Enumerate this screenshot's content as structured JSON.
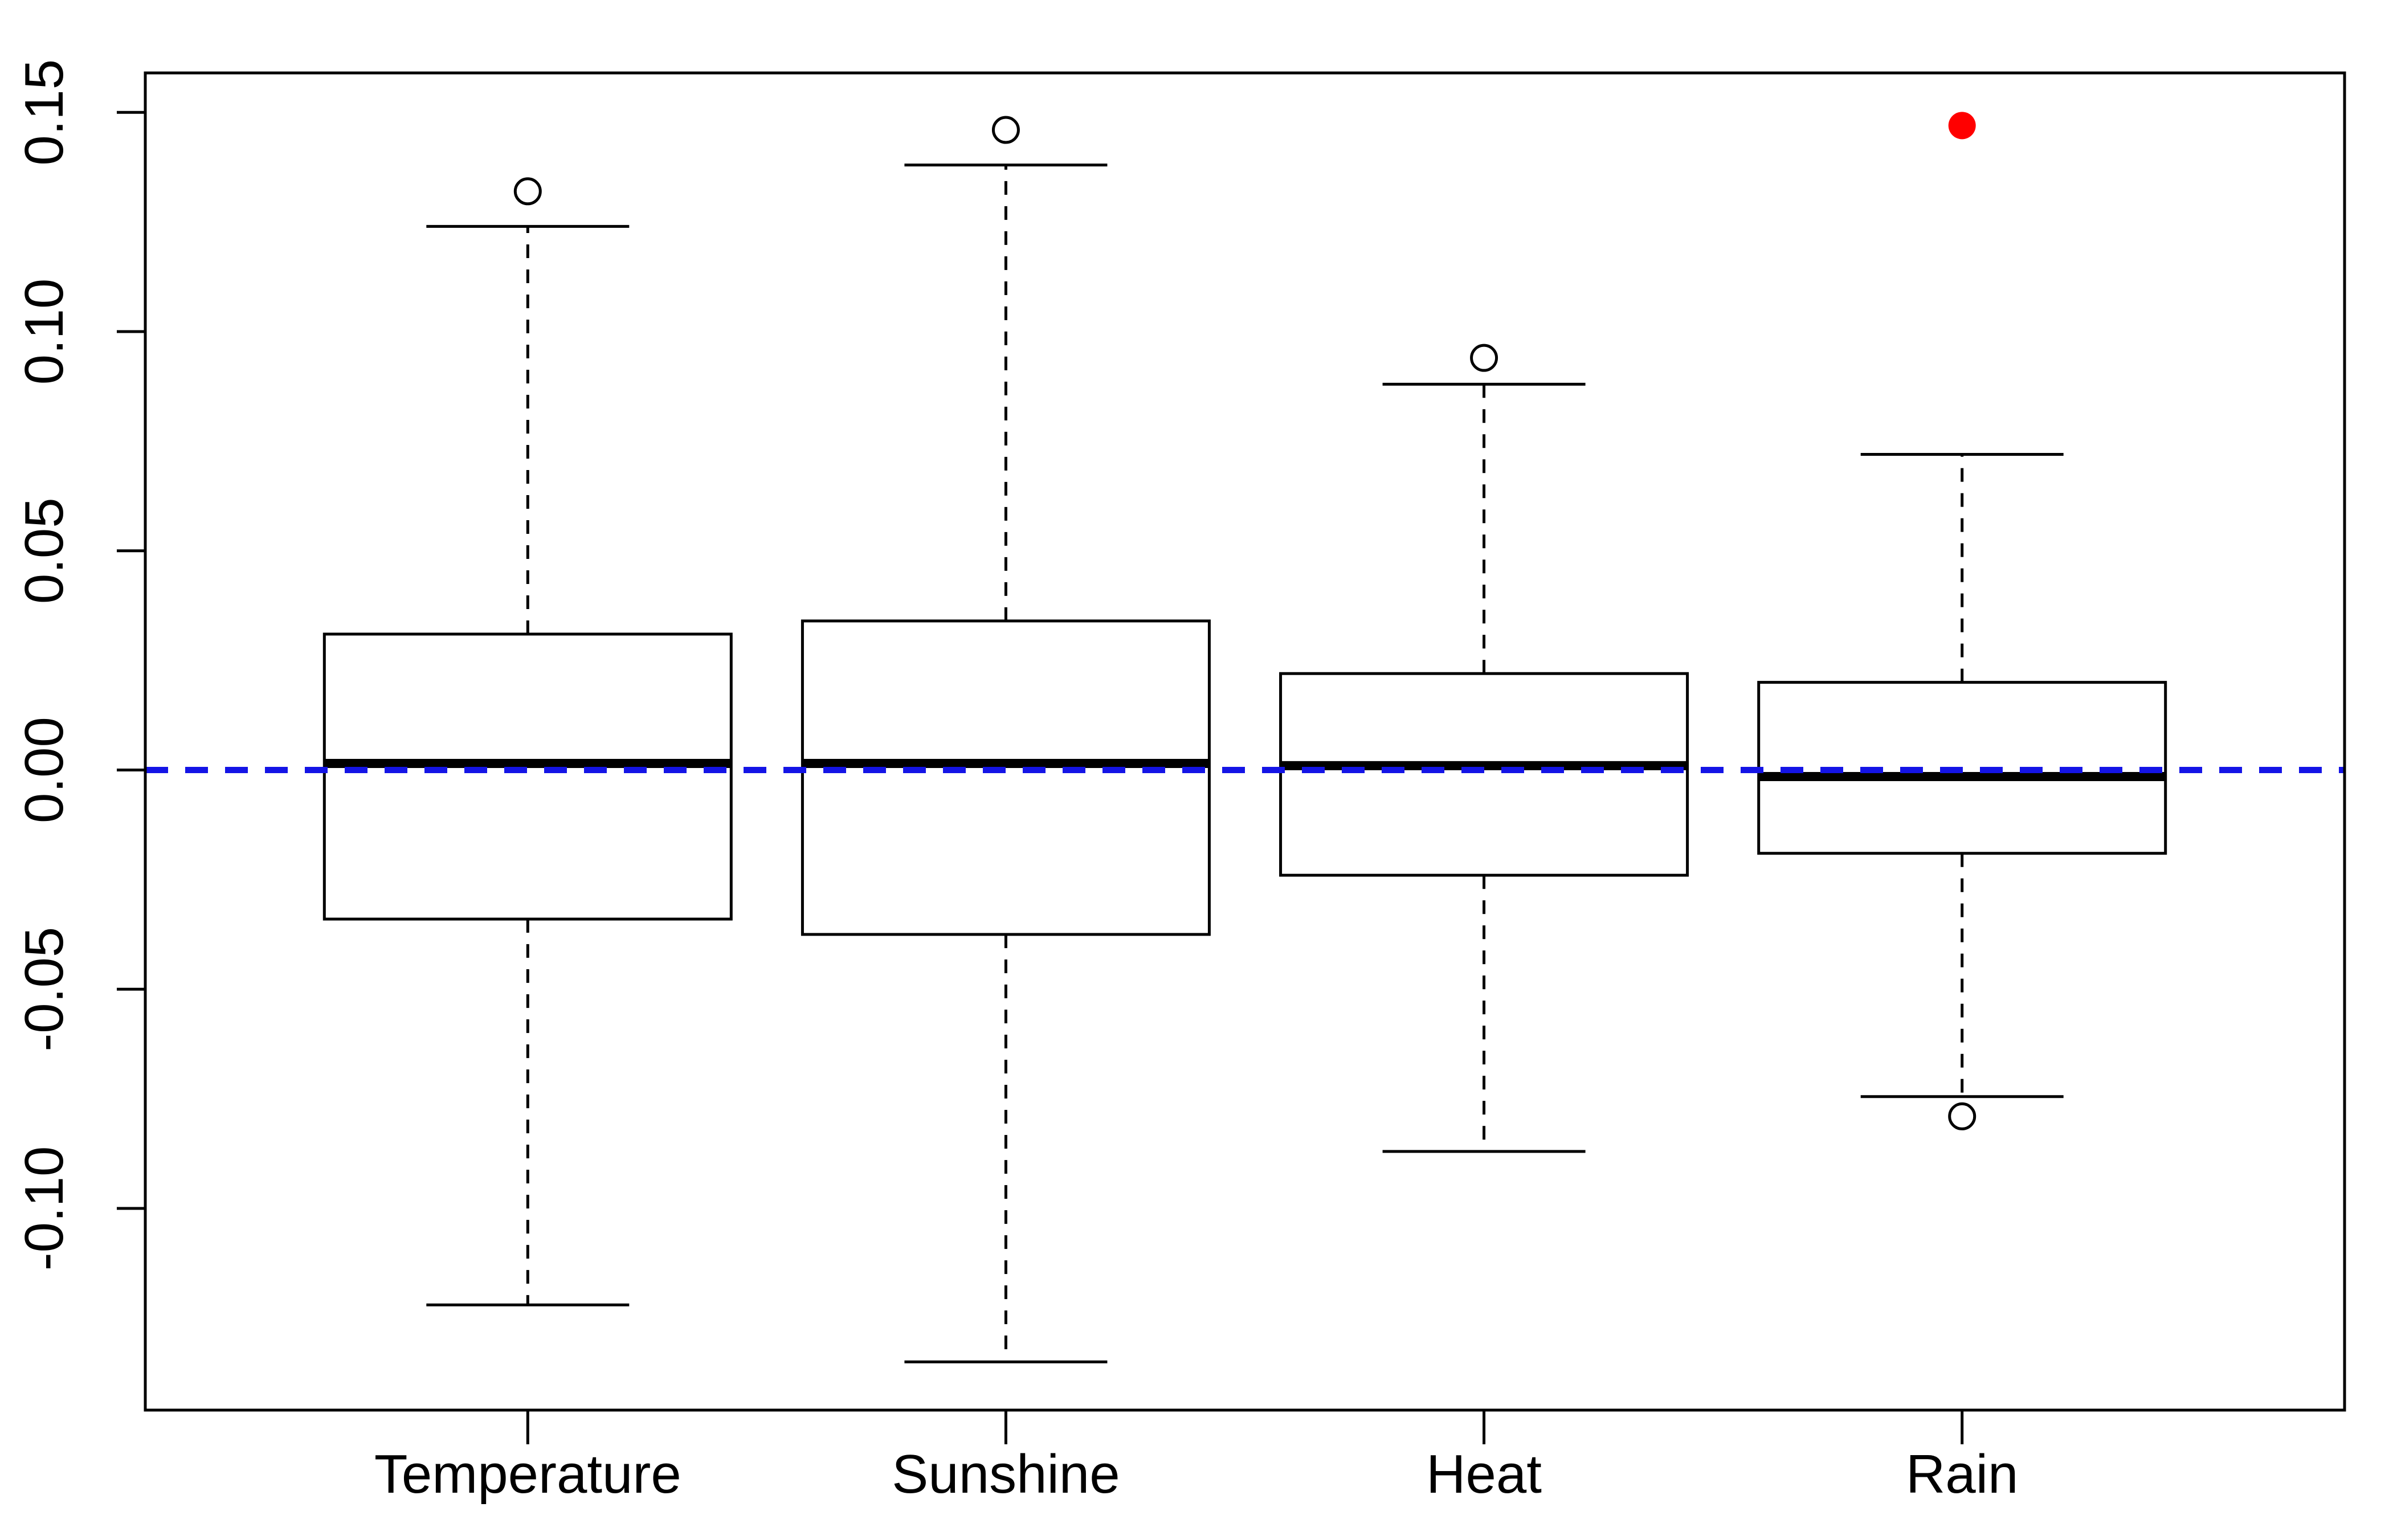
{
  "chart_data": {
    "type": "boxplot",
    "categories": [
      "Temperature",
      "Sunshine",
      "Heat",
      "Rain"
    ],
    "boxes": [
      {
        "category": "Temperature",
        "whisker_low": -0.122,
        "q1": -0.034,
        "median": 0.0015,
        "q3": 0.031,
        "whisker_high": 0.124,
        "outliers": [
          0.132
        ]
      },
      {
        "category": "Sunshine",
        "whisker_low": -0.135,
        "q1": -0.0375,
        "median": 0.0015,
        "q3": 0.034,
        "whisker_high": 0.138,
        "outliers": [
          0.146
        ]
      },
      {
        "category": "Heat",
        "whisker_low": -0.087,
        "q1": -0.024,
        "median": 0.001,
        "q3": 0.022,
        "whisker_high": 0.088,
        "outliers": [
          0.094
        ]
      },
      {
        "category": "Rain",
        "whisker_low": -0.0745,
        "q1": -0.019,
        "median": -0.0015,
        "q3": 0.02,
        "whisker_high": 0.072,
        "outliers": [
          -0.079
        ]
      }
    ],
    "highlighted_points": [
      {
        "category": "Rain",
        "value": 0.147,
        "color": "#ff0000"
      }
    ],
    "reference_line": {
      "y": 0.0,
      "color": "#1414e6",
      "style": "dashed"
    },
    "y_ticks": [
      "-0.10",
      "-0.05",
      "0.00",
      "0.05",
      "0.10",
      "0.15"
    ],
    "y_tick_values": [
      -0.1,
      -0.05,
      0.0,
      0.05,
      0.1,
      0.15
    ],
    "ylim": [
      -0.146,
      0.159
    ],
    "title": "",
    "xlabel": "",
    "ylabel": "",
    "grid": false,
    "colors": {
      "axis": "#000000",
      "box_fill": "#ffffff",
      "reference": "#1414e6",
      "highlight": "#ff0000"
    }
  }
}
